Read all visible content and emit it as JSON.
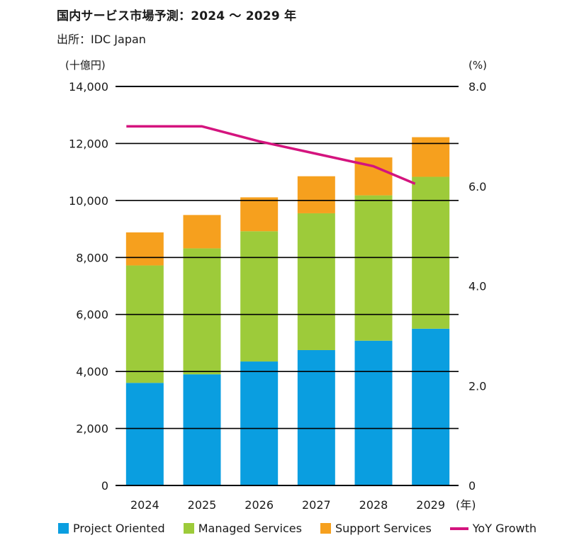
{
  "header": {
    "title": "国内サービス市場予測：2024 ～ 2029 年",
    "source": "出所：IDC Japan"
  },
  "chart_data": {
    "type": "bar",
    "stacked": true,
    "categories": [
      "2024",
      "2025",
      "2026",
      "2027",
      "2028",
      "2029"
    ],
    "x_unit_label": "(年)",
    "y_left": {
      "unit_label": "(十億円)",
      "ylim": [
        0,
        14000
      ],
      "ticks": [
        "0",
        "2,000",
        "4,000",
        "6,000",
        "8,000",
        "10,000",
        "12,000",
        "14,000"
      ]
    },
    "y_right": {
      "unit_label": "(%)",
      "ylim": [
        0,
        8
      ],
      "ticks": [
        "0",
        "2.0",
        "4.0",
        "6.0",
        "8.0"
      ]
    },
    "grid": true,
    "legend_position": "bottom",
    "series": [
      {
        "name": "Project Oriented",
        "color": "#0a9ee0",
        "axis": "left",
        "values": [
          3600,
          3900,
          4350,
          4750,
          5080,
          5500
        ]
      },
      {
        "name": "Managed Services",
        "color": "#9dcb3a",
        "axis": "left",
        "values": [
          4120,
          4420,
          4570,
          4800,
          5100,
          5330
        ]
      },
      {
        "name": "Support Services",
        "color": "#f6a01e",
        "axis": "left",
        "values": [
          1160,
          1170,
          1190,
          1300,
          1330,
          1390
        ]
      }
    ],
    "line_series": [
      {
        "name": "YoY Growth",
        "color": "#d4147e",
        "axis": "right",
        "type": "line",
        "values": [
          7.2,
          7.2,
          6.9,
          6.65,
          6.4,
          6.05
        ]
      }
    ]
  }
}
